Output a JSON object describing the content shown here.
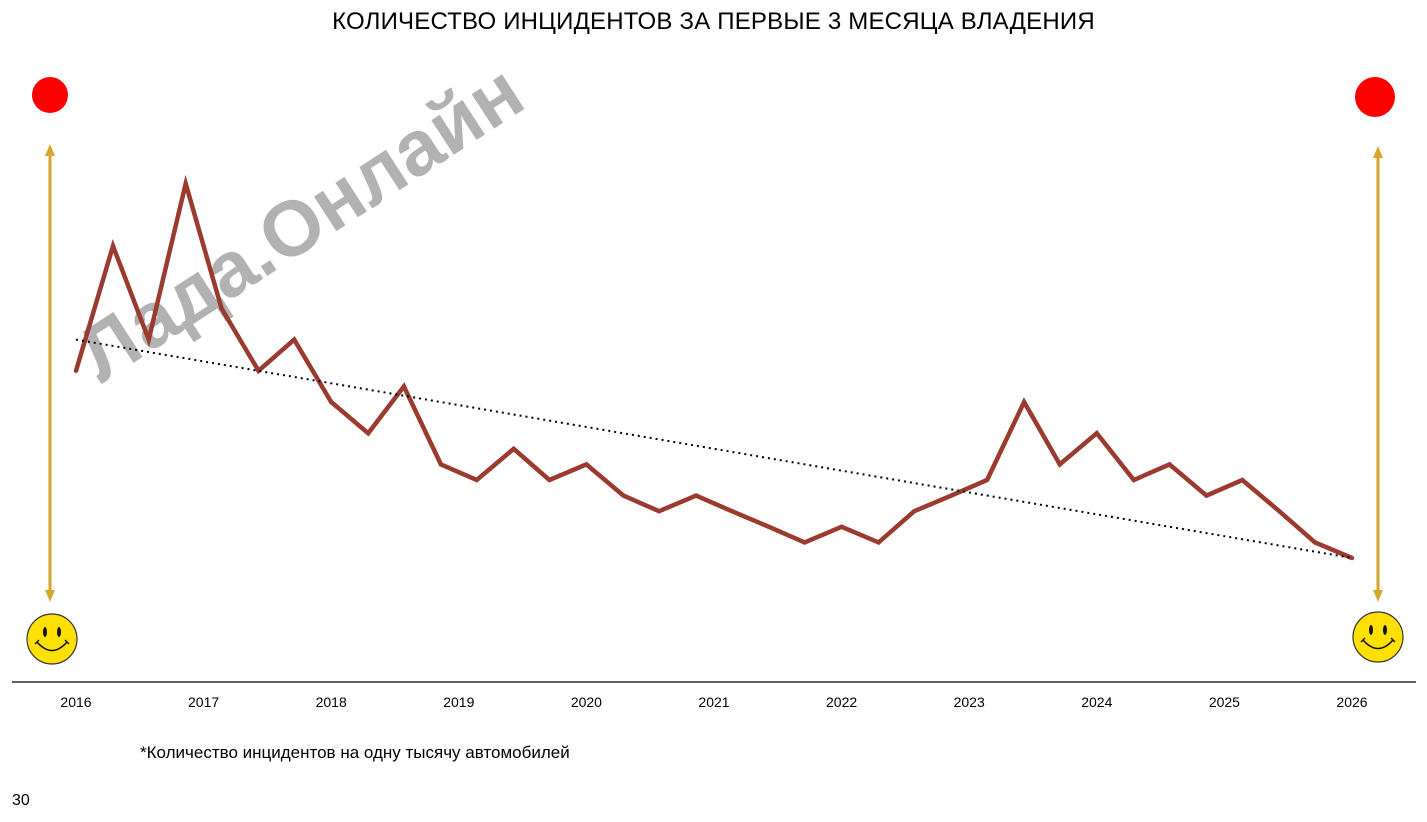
{
  "title": "КОЛИЧЕСТВО ИНЦИДЕНТОВ ЗА ПЕРВЫЕ 3 МЕСЯЦА ВЛАДЕНИЯ",
  "watermark": "Лада.Онлайн",
  "footnote": "*Количество инцидентов на одну тысячу автомобилей",
  "page_number": "30",
  "legend_icons": {
    "top": "red-dot-icon",
    "bottom": "smiley-face-icon",
    "arrow": "double-arrow-icon"
  },
  "colors": {
    "line": "#9b3b2f",
    "trend": "#000000",
    "arrow": "#d4a72c",
    "dot": "#ff0000",
    "smiley": "#ffe000",
    "watermark": "#aaaaaa"
  },
  "chart_data": {
    "type": "line",
    "title": "КОЛИЧЕСТВО ИНЦИДЕНТОВ ЗА ПЕРВЫЕ 3 МЕСЯЦА ВЛАДЕНИЯ",
    "xlabel": "",
    "ylabel": "",
    "x_ticks": [
      "2016",
      "2017",
      "2018",
      "2019",
      "2020",
      "2021",
      "2022",
      "2023",
      "2024",
      "2025",
      "2026"
    ],
    "xlim": [
      2016,
      2026
    ],
    "y_axis_shown": false,
    "grid": false,
    "series": [
      {
        "style": "solid",
        "x": [
          2016.0,
          2016.29,
          2016.57,
          2016.86,
          2017.14,
          2017.43,
          2017.71,
          2018.0,
          2018.29,
          2018.57,
          2018.86,
          2019.14,
          2019.43,
          2019.71,
          2020.0,
          2020.29,
          2020.57,
          2020.86,
          2021.14,
          2021.43,
          2021.71,
          2022.0,
          2022.29,
          2022.57,
          2022.86,
          2023.14,
          2023.43,
          2023.71,
          2024.0,
          2024.29,
          2024.57,
          2024.86,
          2025.14,
          2025.43,
          2025.71,
          2026.0
        ],
        "values": [
          16,
          20,
          17,
          22,
          18,
          16,
          17,
          15,
          14,
          15.5,
          13,
          12.5,
          13.5,
          12.5,
          13,
          12,
          11.5,
          12,
          11.5,
          11,
          10.5,
          11,
          10.5,
          11.5,
          12,
          12.5,
          15,
          13,
          14,
          12.5,
          13,
          12,
          12.5,
          11.5,
          10.5,
          10
        ]
      },
      {
        "style": "dotted",
        "type": "trend",
        "x": [
          2016.0,
          2026.0
        ],
        "values": [
          17,
          10
        ]
      }
    ]
  }
}
